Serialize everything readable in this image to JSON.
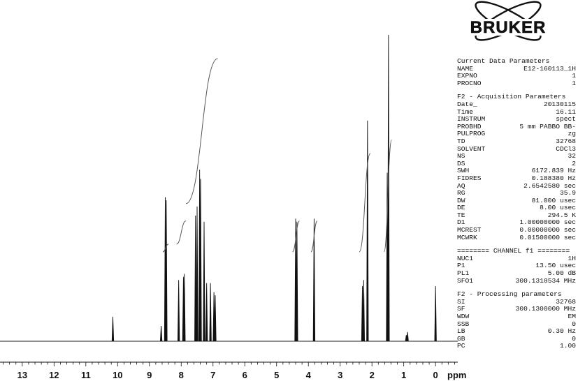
{
  "chart_data": {
    "type": "line",
    "title": "",
    "xlabel": "ppm",
    "ylabel": "",
    "xlim": [
      13.7,
      -0.7
    ],
    "x_ticks": [
      13,
      12,
      11,
      10,
      9,
      8,
      7,
      6,
      5,
      4,
      3,
      2,
      1,
      0
    ],
    "x_minor_step": 0.2,
    "x_reversed": true,
    "grid": false,
    "baseline_ppm_range": [
      13.7,
      -0.7
    ],
    "peaks": [
      {
        "ppm": 10.15,
        "height": 0.08
      },
      {
        "ppm": 8.63,
        "height": 0.05
      },
      {
        "ppm": 8.5,
        "height": 0.47
      },
      {
        "ppm": 8.47,
        "height": 0.46
      },
      {
        "ppm": 8.08,
        "height": 0.2
      },
      {
        "ppm": 7.93,
        "height": 0.21
      },
      {
        "ppm": 7.9,
        "height": 0.22
      },
      {
        "ppm": 7.55,
        "height": 0.41
      },
      {
        "ppm": 7.5,
        "height": 0.44
      },
      {
        "ppm": 7.42,
        "height": 0.56
      },
      {
        "ppm": 7.39,
        "height": 0.53
      },
      {
        "ppm": 7.28,
        "height": 0.39
      },
      {
        "ppm": 7.2,
        "height": 0.19
      },
      {
        "ppm": 7.08,
        "height": 0.19
      },
      {
        "ppm": 6.97,
        "height": 0.16
      },
      {
        "ppm": 6.93,
        "height": 0.15
      },
      {
        "ppm": 4.4,
        "height": 0.4
      },
      {
        "ppm": 4.36,
        "height": 0.39
      },
      {
        "ppm": 3.82,
        "height": 0.4
      },
      {
        "ppm": 2.3,
        "height": 0.18
      },
      {
        "ppm": 2.26,
        "height": 0.2
      },
      {
        "ppm": 2.14,
        "height": 0.72
      },
      {
        "ppm": 1.52,
        "height": 0.55
      },
      {
        "ppm": 1.48,
        "height": 1.0
      },
      {
        "ppm": 0.92,
        "height": 0.02
      },
      {
        "ppm": 0.88,
        "height": 0.03
      },
      {
        "ppm": 0.0,
        "height": 0.18
      }
    ],
    "integrals": [
      {
        "from_ppm": 8.58,
        "to_ppm": 8.4,
        "start": 0.0,
        "end": 0.04
      },
      {
        "from_ppm": 8.15,
        "to_ppm": 7.85,
        "start": 0.04,
        "end": 0.16
      },
      {
        "from_ppm": 7.85,
        "to_ppm": 6.85,
        "start": 0.25,
        "end": 1.0
      },
      {
        "from_ppm": 4.5,
        "to_ppm": 4.28,
        "start": 0.0,
        "end": 0.16
      },
      {
        "from_ppm": 3.92,
        "to_ppm": 3.72,
        "start": 0.0,
        "end": 0.16
      },
      {
        "from_ppm": 2.4,
        "to_ppm": 2.05,
        "start": 0.0,
        "end": 0.51
      },
      {
        "from_ppm": 1.62,
        "to_ppm": 1.38,
        "start": 0.0,
        "end": 0.58
      }
    ]
  },
  "logo": {
    "text": "BRUKER"
  },
  "params": {
    "current": {
      "header": "Current Data Parameters",
      "rows": [
        {
          "k": "NAME",
          "v": "E12-160113_1H"
        },
        {
          "k": "EXPNO",
          "v": "1"
        },
        {
          "k": "PROCNO",
          "v": "1"
        }
      ]
    },
    "acq": {
      "header": "F2 - Acquisition Parameters",
      "rows": [
        {
          "k": "Date_",
          "v": "20130115"
        },
        {
          "k": "Time",
          "v": "16.11"
        },
        {
          "k": "INSTRUM",
          "v": "spect"
        },
        {
          "k": "PROBHD",
          "v": "5 mm PABBO BB-"
        },
        {
          "k": "PULPROG",
          "v": "zg"
        },
        {
          "k": "TD",
          "v": "32768"
        },
        {
          "k": "SOLVENT",
          "v": "CDCl3"
        },
        {
          "k": "NS",
          "v": "32"
        },
        {
          "k": "DS",
          "v": "2"
        },
        {
          "k": "SWH",
          "v": "6172.839 Hz"
        },
        {
          "k": "FIDRES",
          "v": "0.188380 Hz"
        },
        {
          "k": "AQ",
          "v": "2.6542580 sec"
        },
        {
          "k": "RG",
          "v": "35.9"
        },
        {
          "k": "DW",
          "v": "81.000 usec"
        },
        {
          "k": "DE",
          "v": "8.00 usec"
        },
        {
          "k": "TE",
          "v": "294.5 K"
        },
        {
          "k": "D1",
          "v": "1.00000000 sec"
        },
        {
          "k": "MCREST",
          "v": "0.00000000 sec"
        },
        {
          "k": "MCWRK",
          "v": "0.01500000 sec"
        }
      ]
    },
    "channel": {
      "header": "======== CHANNEL f1 ========",
      "rows": [
        {
          "k": "NUC1",
          "v": "1H"
        },
        {
          "k": "P1",
          "v": "13.50 usec"
        },
        {
          "k": "PL1",
          "v": "5.00 dB"
        },
        {
          "k": "SFO1",
          "v": "300.1318534 MHz"
        }
      ]
    },
    "proc": {
      "header": "F2 - Processing parameters",
      "rows": [
        {
          "k": "SI",
          "v": "32768"
        },
        {
          "k": "SF",
          "v": "300.1300000 MHz"
        },
        {
          "k": "WDW",
          "v": "EM"
        },
        {
          "k": "SSB",
          "v": "0"
        },
        {
          "k": "LB",
          "v": "0.30 Hz"
        },
        {
          "k": "GB",
          "v": "0"
        },
        {
          "k": "PC",
          "v": "1.00"
        }
      ]
    }
  }
}
